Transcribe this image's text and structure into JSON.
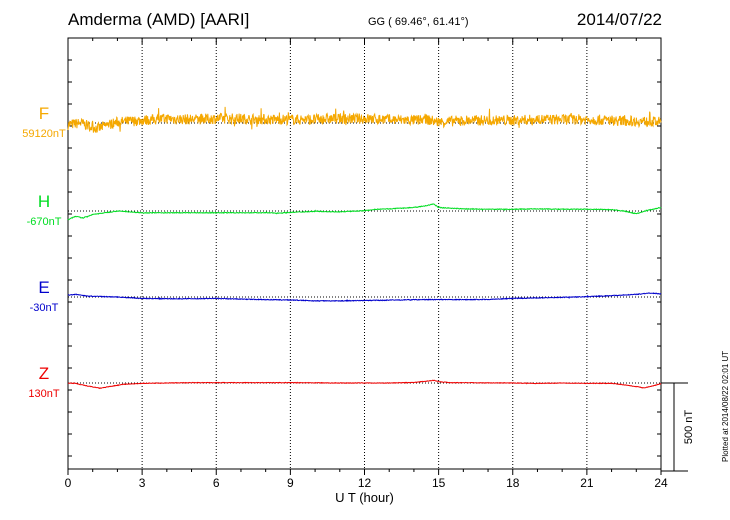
{
  "header": {
    "station": "Amderma (AMD)  [AARI]",
    "coords": "GG ( 69.46°,  61.41°)",
    "date": "2014/07/22"
  },
  "footer": {
    "plotted": "Plotted at 2014/08/22 02:01  UT"
  },
  "colors": {
    "F": "#f5a800",
    "H": "#00dd22",
    "E": "#0000cc",
    "Z": "#ee0000"
  },
  "chart_data": {
    "type": "line",
    "xlabel": "U T (hour)",
    "ylabel": "",
    "xlim": [
      0,
      24
    ],
    "xticks": [
      0,
      3,
      6,
      9,
      12,
      15,
      18,
      21,
      24
    ],
    "scale_bar": {
      "label": "500 nT",
      "value_nT": 500
    },
    "grid": "dotted vertical at 3h, dotted horizontal at each baseline",
    "series": [
      {
        "name": "F",
        "baseline_label": "59120nT",
        "baseline": 59120,
        "x": [
          0,
          0.5,
          1,
          1.25,
          1.5,
          2,
          2.5,
          3,
          3.5,
          4,
          5,
          6,
          7,
          8,
          9,
          10,
          11,
          12,
          13,
          14,
          14.5,
          15,
          16,
          17,
          18,
          19,
          20,
          21,
          22,
          23,
          24
        ],
        "y": [
          59110,
          59120,
          59095,
          59090,
          59105,
          59125,
          59130,
          59135,
          59140,
          59145,
          59140,
          59145,
          59145,
          59140,
          59140,
          59140,
          59145,
          59145,
          59140,
          59135,
          59140,
          59125,
          59135,
          59135,
          59135,
          59140,
          59140,
          59140,
          59135,
          59130,
          59125
        ],
        "noise": 30
      },
      {
        "name": "H",
        "baseline_label": "-670nT",
        "baseline": -670,
        "x": [
          0,
          0.3,
          0.6,
          1,
          1.5,
          2,
          2.5,
          3,
          4,
          5,
          6,
          7,
          8,
          8.5,
          9,
          10,
          11,
          12,
          12.5,
          13,
          14,
          14.5,
          14.8,
          15,
          16,
          17,
          18,
          19,
          20,
          21,
          22,
          22.5,
          23,
          23.5,
          24
        ],
        "y": [
          -720,
          -700,
          -710,
          -690,
          -680,
          -670,
          -675,
          -680,
          -680,
          -680,
          -680,
          -680,
          -680,
          -682,
          -678,
          -672,
          -675,
          -668,
          -660,
          -658,
          -650,
          -640,
          -630,
          -650,
          -658,
          -660,
          -660,
          -658,
          -660,
          -660,
          -662,
          -670,
          -685,
          -665,
          -650
        ],
        "noise": 2
      },
      {
        "name": "E",
        "baseline_label": "-30nT",
        "baseline": -30,
        "x": [
          0,
          0.3,
          0.8,
          1.5,
          2,
          3,
          4,
          5,
          6,
          7,
          8,
          9,
          10,
          11,
          12,
          13,
          14,
          15,
          16,
          17,
          18,
          19,
          20,
          21,
          22,
          23,
          23.5,
          24
        ],
        "y": [
          -20,
          -15,
          -25,
          -28,
          -30,
          -38,
          -40,
          -40,
          -38,
          -42,
          -45,
          -47,
          -52,
          -52,
          -50,
          -48,
          -45,
          -45,
          -45,
          -44,
          -38,
          -35,
          -32,
          -28,
          -22,
          -15,
          -8,
          -12
        ],
        "noise": 2
      },
      {
        "name": "Z",
        "baseline_label": "130nT",
        "baseline": 130,
        "x": [
          0,
          0.3,
          0.6,
          1,
          1.3,
          1.7,
          2.2,
          3,
          4,
          5,
          6,
          7,
          8,
          9,
          10,
          11,
          12,
          13,
          14,
          14.5,
          14.8,
          15,
          15.5,
          16,
          17,
          18,
          19,
          20,
          21,
          22,
          22.5,
          23,
          23.3,
          23.7,
          24
        ],
        "y": [
          130,
          128,
          118,
          108,
          100,
          110,
          122,
          128,
          130,
          132,
          132,
          132,
          132,
          132,
          131,
          130,
          130,
          130,
          133,
          140,
          145,
          138,
          132,
          132,
          131,
          130,
          128,
          130,
          128,
          128,
          120,
          110,
          102,
          115,
          126
        ],
        "noise": 1.5
      }
    ]
  }
}
